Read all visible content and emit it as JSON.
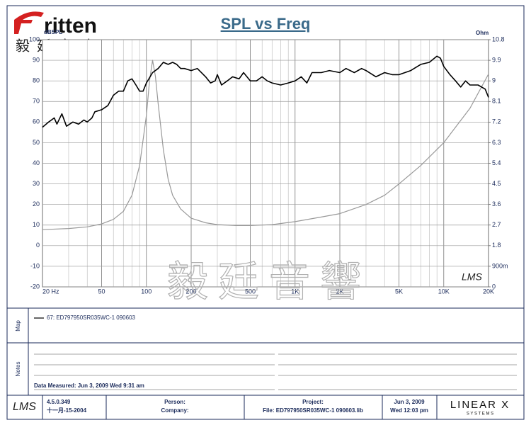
{
  "logo": {
    "brand": "ritten",
    "chinese": "毅廷音响"
  },
  "watermark": "毅廷音響",
  "chart_data": {
    "type": "line",
    "title": "SPL vs Freq",
    "ylabel": "dBSPL",
    "y2label": "Ohm",
    "mark": "LMS",
    "log_x": true,
    "grid": true,
    "xlim": [
      20,
      20000
    ],
    "xticks": [
      {
        "value": 20,
        "label": "20  Hz"
      },
      50,
      100,
      200,
      500,
      {
        "value": 1000,
        "label": "1K"
      },
      {
        "value": 2000,
        "label": "2K"
      },
      {
        "value": 5000,
        "label": "5K"
      },
      {
        "value": 10000,
        "label": "10K"
      },
      {
        "value": 20000,
        "label": "20K"
      }
    ],
    "xminorticks": [
      30,
      40,
      60,
      70,
      80,
      90,
      300,
      400,
      600,
      700,
      800,
      900,
      3000,
      4000,
      6000,
      7000,
      8000,
      9000
    ],
    "ylim": [
      -20,
      100
    ],
    "yticks": [
      -20,
      -10,
      0,
      10,
      20,
      30,
      40,
      50,
      60,
      70,
      80,
      90,
      100
    ],
    "y2lim": [
      0,
      10.8
    ],
    "y2ticks": [
      0,
      {
        "value": 0.9,
        "label": "900m"
      },
      1.8,
      2.7,
      3.6,
      4.5,
      5.4,
      6.3,
      7.2,
      8.1,
      9,
      9.9,
      10.8
    ],
    "series": [
      {
        "name": "67: ED797950SR035WC-1  090603",
        "color": "#000000",
        "x": [
          20,
          22,
          24,
          25,
          27,
          29,
          32,
          35,
          38,
          40,
          43,
          45,
          50,
          55,
          60,
          65,
          70,
          75,
          80,
          85,
          90,
          95,
          100,
          110,
          120,
          130,
          140,
          150,
          160,
          170,
          180,
          200,
          220,
          250,
          270,
          290,
          300,
          320,
          350,
          380,
          420,
          450,
          500,
          550,
          600,
          650,
          700,
          800,
          900,
          1000,
          1100,
          1200,
          1300,
          1500,
          1700,
          2000,
          2200,
          2500,
          2800,
          3000,
          3500,
          4000,
          4500,
          5000,
          6000,
          7000,
          8000,
          9000,
          9500,
          10000,
          11000,
          12000,
          13000,
          14000,
          15000,
          17000,
          19000,
          20000
        ],
        "values": [
          57.5,
          60,
          62,
          59,
          64,
          58,
          60,
          59,
          61,
          60,
          62,
          65,
          66,
          68,
          73,
          75,
          75,
          80,
          81,
          78,
          75,
          75,
          79,
          84,
          86,
          89,
          88,
          89,
          88,
          86,
          86,
          85,
          86,
          82,
          79,
          80,
          83,
          78,
          80,
          82,
          81,
          84,
          80,
          80,
          82,
          80,
          79,
          78,
          79,
          80,
          82,
          79,
          84,
          84,
          85,
          84,
          86,
          84,
          86,
          85,
          82,
          84,
          83,
          83,
          85,
          88,
          89,
          92,
          91,
          87,
          83,
          80,
          77,
          80,
          78,
          78,
          76,
          72
        ]
      },
      {
        "color": "#999999",
        "axis": "y2",
        "x": [
          20,
          30,
          40,
          50,
          60,
          70,
          80,
          90,
          100,
          105,
          110,
          115,
          120,
          130,
          140,
          150,
          170,
          200,
          250,
          300,
          400,
          500,
          700,
          1000,
          1500,
          2000,
          3000,
          4000,
          5000,
          7000,
          10000,
          15000,
          20000
        ],
        "values": [
          2.5,
          2.55,
          2.62,
          2.75,
          2.95,
          3.3,
          4.0,
          5.3,
          7.5,
          9.0,
          9.9,
          9.2,
          8.0,
          6.0,
          4.7,
          4.0,
          3.4,
          3.0,
          2.8,
          2.72,
          2.68,
          2.68,
          2.72,
          2.85,
          3.05,
          3.2,
          3.6,
          4.0,
          4.5,
          5.3,
          6.3,
          7.8,
          9.3
        ]
      }
    ]
  },
  "panels": {
    "map": "Map",
    "notes": "Notes",
    "measured": "Data Measured: Jun 3, 2009  Wed  9:31 am"
  },
  "footer": {
    "software": "LMS",
    "version": "4.5.0.349",
    "version_date": "十一月-15-2004",
    "person": "Person:",
    "company": "Company:",
    "project": "Project:",
    "file": "File: ED797950SR035WC-1 090603.lib",
    "date": "Jun 3, 2009",
    "time": "Wed 12:03 pm",
    "vendor": "LINEAR X",
    "vendor_sub": "S Y S T E M S"
  }
}
